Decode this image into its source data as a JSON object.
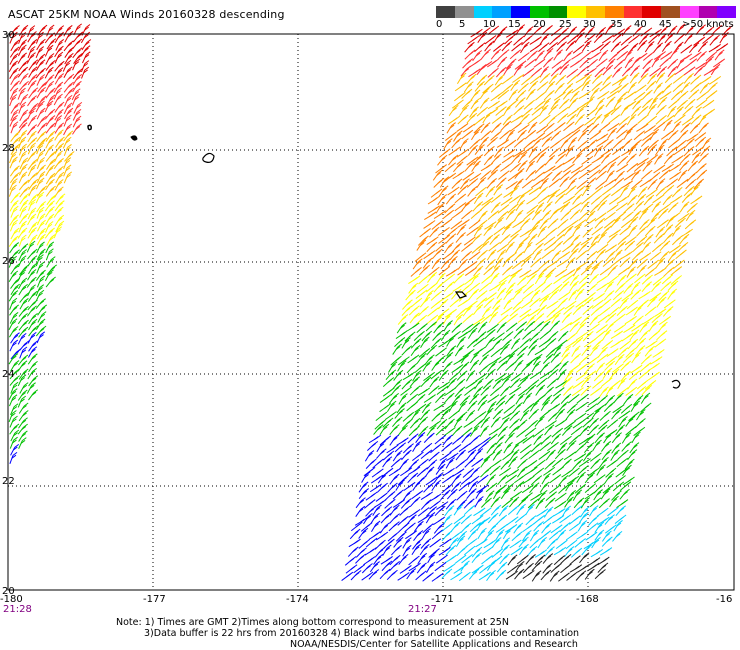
{
  "title": "ASCAT 25KM NOAA Winds 20160328 descending",
  "legend": {
    "colors": [
      "#404040",
      "#909090",
      "#00d0ff",
      "#00a0ff",
      "#0000ff",
      "#00c000",
      "#009000",
      "#ffff00",
      "#ffc000",
      "#ff8000",
      "#ff3030",
      "#e00000",
      "#a05020",
      "#ff40ff",
      "#b000b0",
      "#8000ff"
    ],
    "labels": [
      "0",
      "5",
      "10",
      "15",
      "20",
      "25",
      "30",
      "35",
      "40",
      "45",
      ">50 knots"
    ]
  },
  "map": {
    "lon_ticks": [
      "-180",
      "-177",
      "-174",
      "-171",
      "-168",
      "-16"
    ],
    "lat_ticks": [
      "30",
      "28",
      "26",
      "24",
      "22",
      "20"
    ],
    "time_labels": [
      "21:28",
      "21:27"
    ]
  },
  "notes": {
    "line1": "Note: 1) Times are GMT 2)Times along bottom correspond to measurement at 25N",
    "line2": "3)Data buffer is 22 hrs from 20160328 4) Black wind barbs indicate possible contamination",
    "line3": "NOAA/NESDIS/Center for Satellite Applications and Research"
  }
}
